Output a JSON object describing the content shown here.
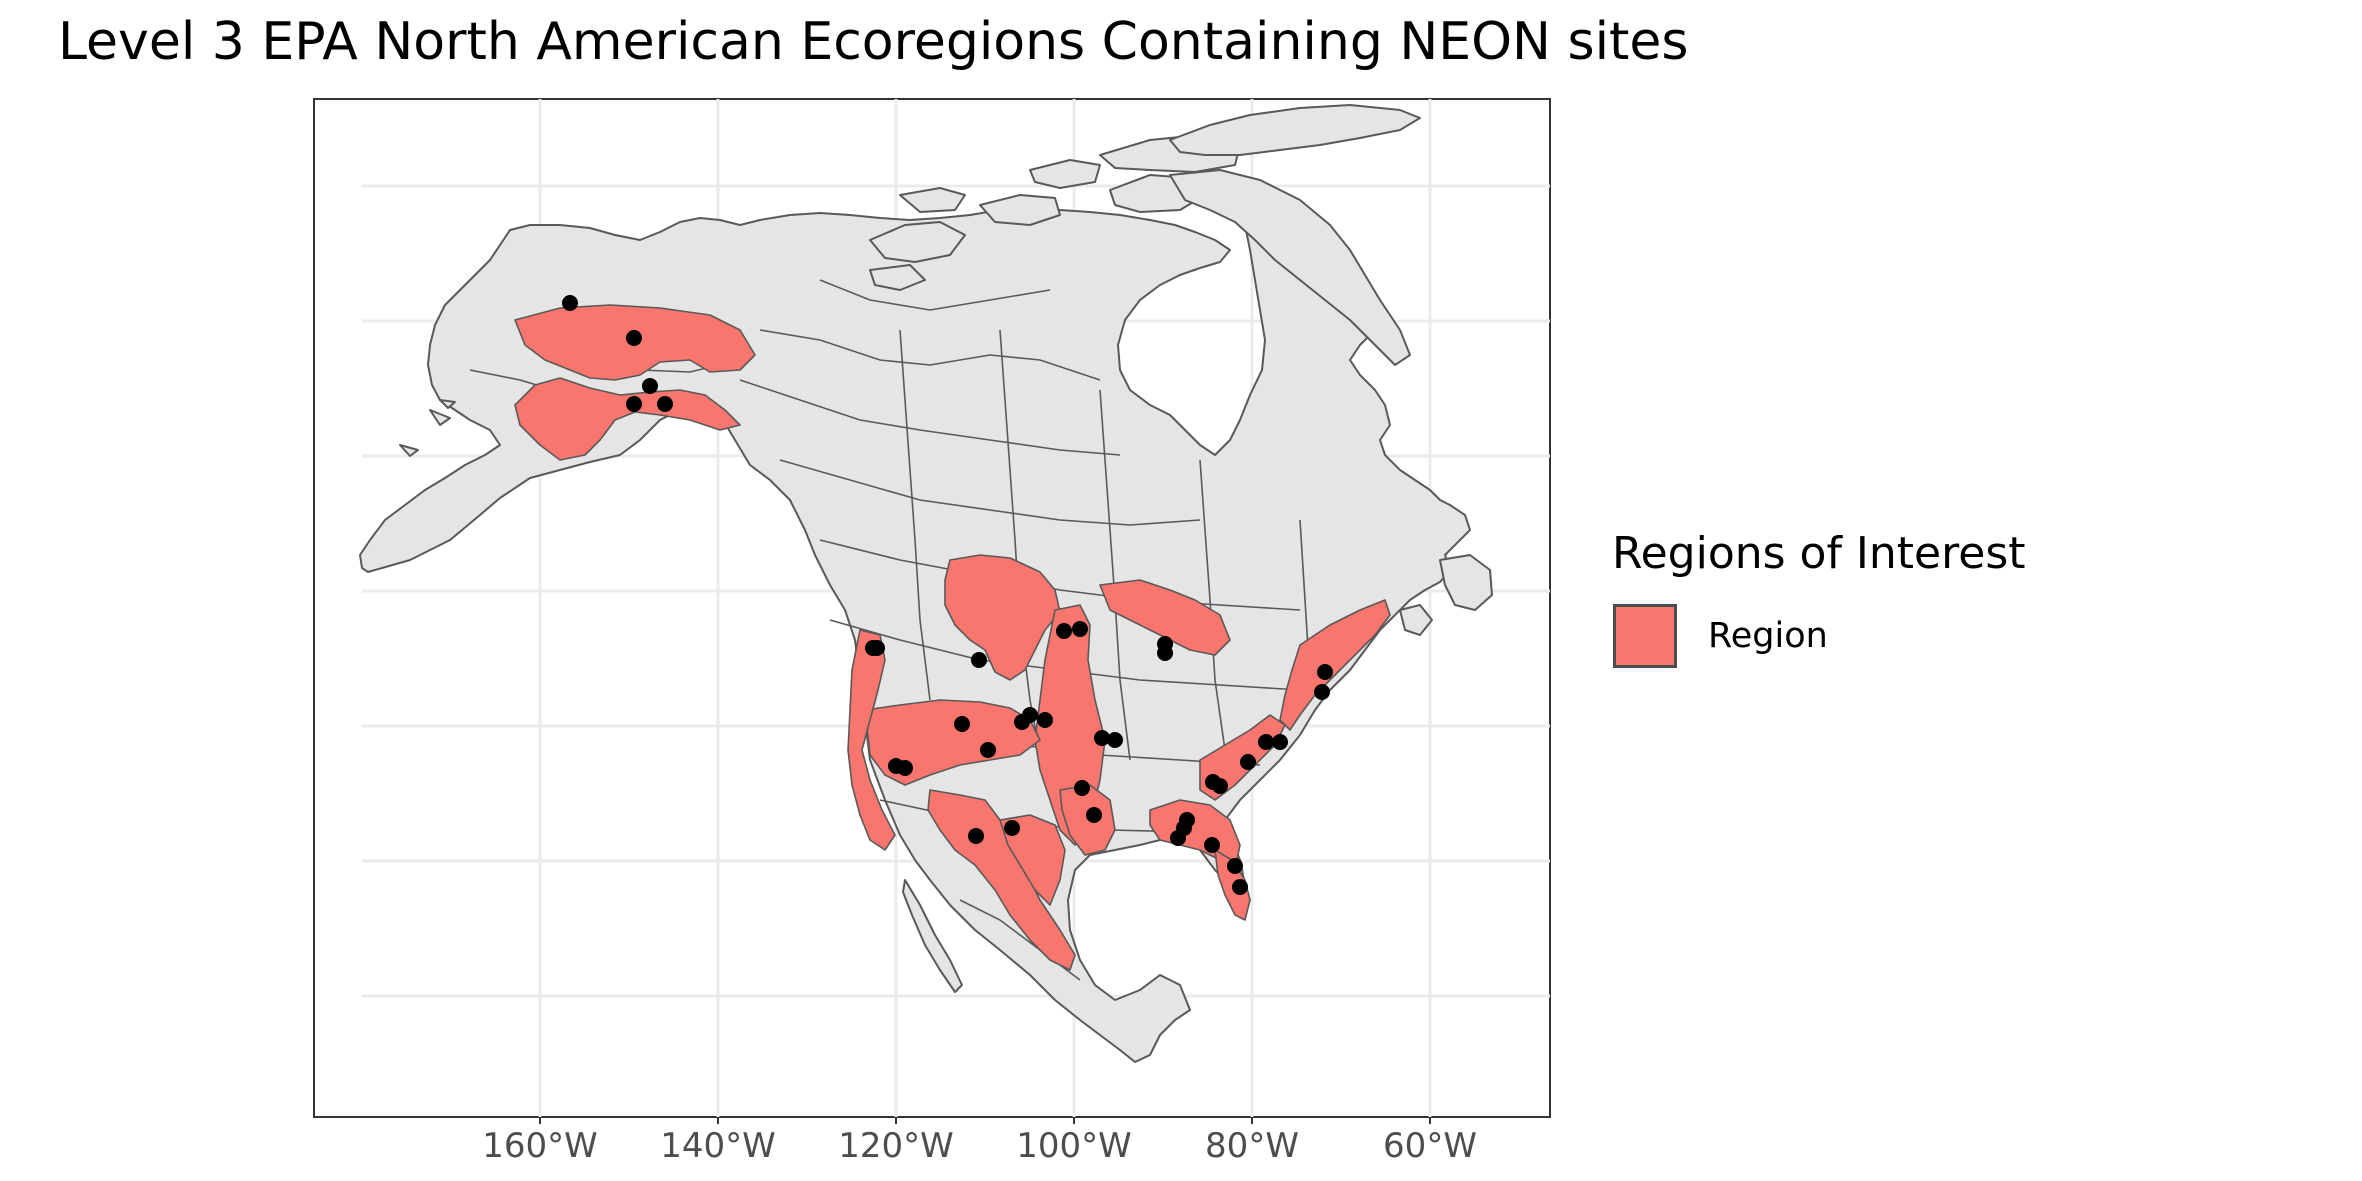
{
  "title": "Level 3 EPA North American Ecoregions Containing NEON sites",
  "legend": {
    "title": "Regions of Interest",
    "items": [
      {
        "label": "Region",
        "color": "#F8766D"
      }
    ]
  },
  "colors": {
    "land": "#E5E5E5",
    "land_border": "#595959",
    "region_fill": "#F8766D",
    "site_point": "#000000",
    "grid": "#EBEBEB",
    "panel_border": "#333333"
  },
  "axis": {
    "x_ticks": [
      "160°W",
      "140°W",
      "120°W",
      "100°W",
      "80°W",
      "60°W"
    ]
  },
  "map_data": {
    "type": "choropleth map with point sites",
    "neon_sites_count": 42
  }
}
